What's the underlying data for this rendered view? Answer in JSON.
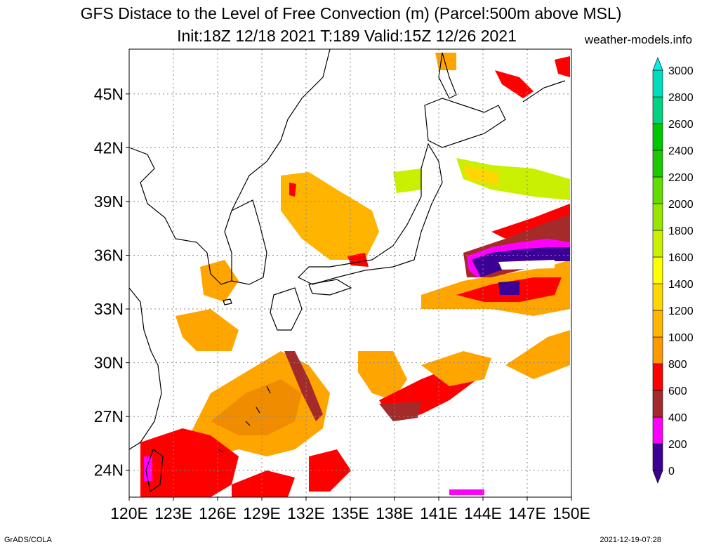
{
  "title": {
    "line1": "GFS Distace to the Level of Free Convection (m) (Parcel:500m above MSL)",
    "line2": "Init:18Z 12/18 2021 T:189 Valid:15Z 12/26 2021"
  },
  "site": "weather-models.info",
  "footer": {
    "left": "GrADS/COLA",
    "right": "2021-12-19-07:28"
  },
  "map": {
    "lon_range": [
      120,
      150
    ],
    "lat_range": [
      22.5,
      47.5
    ],
    "x_ticks": [
      "120E",
      "123E",
      "126E",
      "129E",
      "132E",
      "135E",
      "138E",
      "141E",
      "144E",
      "147E",
      "150E"
    ],
    "y_ticks": [
      {
        "lat": 45,
        "label": "45N"
      },
      {
        "lat": 42,
        "label": "42N"
      },
      {
        "lat": 39,
        "label": "39N"
      },
      {
        "lat": 36,
        "label": "36N"
      },
      {
        "lat": 33,
        "label": "33N"
      },
      {
        "lat": 30,
        "label": "30N"
      },
      {
        "lat": 27,
        "label": "27N"
      },
      {
        "lat": 24,
        "label": "24N"
      }
    ]
  },
  "colorbar": {
    "labels": [
      "0",
      "200",
      "400",
      "600",
      "800",
      "1000",
      "1200",
      "1400",
      "1600",
      "1800",
      "2000",
      "2200",
      "2400",
      "2600",
      "2800",
      "3000"
    ],
    "colors": [
      "#3c0096",
      "#ff00ff",
      "#a52a2a",
      "#ff0000",
      "#ff9900",
      "#ffb400",
      "#ffd700",
      "#ffff00",
      "#c8f000",
      "#96e600",
      "#64dc00",
      "#1ec800",
      "#00c800",
      "#00d282",
      "#00dcbe",
      "#00f0e6"
    ],
    "under_color": "#3c0096",
    "over_color": "#00f0e6"
  }
}
